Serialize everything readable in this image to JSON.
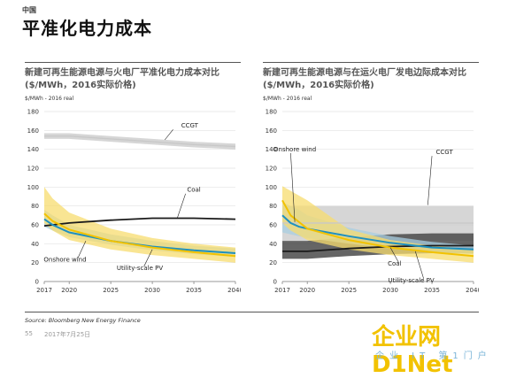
{
  "header": {
    "country": "中国",
    "title": "平准化电力成本"
  },
  "colors": {
    "ccgt": "#c8c8c8",
    "coal": "#1a1a1a",
    "coal_band": "#4a4a4a",
    "onshore_wind": "#1e90c0",
    "onshore_band": "#a8cde0",
    "utility_pv": "#f2c200",
    "pv_band": "#f7dc6f"
  },
  "chart_data": [
    {
      "type": "line",
      "title_line1": "新建可再生能源电源与火电厂平准化电力成本对比",
      "title_line2": "($/MWh，2016实际价格)",
      "unit": "$/MWh - 2016 real",
      "x_ticks": [
        "2017",
        "2020",
        "2025",
        "2030",
        "2035",
        "2040"
      ],
      "y_ticks": [
        "0",
        "20",
        "40",
        "60",
        "80",
        "100",
        "120",
        "140",
        "160",
        "180"
      ],
      "xlim": [
        2017,
        2040
      ],
      "ylim": [
        0,
        180
      ],
      "series": [
        {
          "name": "CCGT",
          "x": [
            2017,
            2020,
            2025,
            2030,
            2035,
            2040
          ],
          "y": [
            154,
            154,
            151,
            148,
            145,
            143
          ],
          "low": [
            151,
            151,
            148,
            145,
            142,
            140
          ],
          "high": [
            157,
            157,
            154,
            151,
            148,
            146
          ]
        },
        {
          "name": "Coal",
          "x": [
            2017,
            2020,
            2025,
            2030,
            2035,
            2040
          ],
          "y": [
            59,
            62,
            65,
            67,
            67,
            66
          ]
        },
        {
          "name": "Onshore wind",
          "x": [
            2017,
            2018,
            2020,
            2025,
            2030,
            2035,
            2040
          ],
          "y": [
            66,
            60,
            52,
            43,
            37,
            33,
            30
          ],
          "low": [
            58,
            54,
            47,
            39,
            33,
            29,
            26
          ],
          "high": [
            76,
            70,
            60,
            50,
            43,
            38,
            35
          ]
        },
        {
          "name": "Utility-scale PV",
          "x": [
            2017,
            2018,
            2020,
            2025,
            2030,
            2035,
            2040
          ],
          "y": [
            72,
            64,
            55,
            43,
            36,
            31,
            27
          ],
          "low": [
            62,
            54,
            44,
            34,
            28,
            24,
            20
          ],
          "high": [
            100,
            88,
            73,
            56,
            46,
            40,
            36
          ]
        }
      ]
    },
    {
      "type": "line",
      "title_line1": "新建可再生能源电源与在运火电厂发电边际成本对比",
      "title_line2": "($/MWh，2016实际价格)",
      "unit": "$/MWh - 2016 real",
      "x_ticks": [
        "2017",
        "2020",
        "2025",
        "2030",
        "2035",
        "2040"
      ],
      "y_ticks": [
        "0",
        "20",
        "40",
        "60",
        "80",
        "100",
        "120",
        "140",
        "160",
        "180"
      ],
      "xlim": [
        2017,
        2040
      ],
      "ylim": [
        0,
        180
      ],
      "series": [
        {
          "name": "CCGT",
          "x": [
            2017,
            2020,
            2025,
            2030,
            2035,
            2040
          ],
          "y": [
            62,
            62,
            62,
            62,
            62,
            62
          ],
          "low": [
            43,
            43,
            43,
            43,
            43,
            43
          ],
          "high": [
            80,
            80,
            80,
            80,
            80,
            80
          ]
        },
        {
          "name": "Coal",
          "x": [
            2017,
            2020,
            2025,
            2030,
            2035,
            2040
          ],
          "y": [
            32,
            32,
            35,
            37,
            38,
            38
          ],
          "low": [
            24,
            24,
            27,
            29,
            30,
            30
          ],
          "high": [
            43,
            43,
            47,
            50,
            51,
            51
          ]
        },
        {
          "name": "Onshore wind",
          "x": [
            2017,
            2018,
            2019,
            2020,
            2025,
            2030,
            2035,
            2040
          ],
          "y": [
            70,
            62,
            58,
            56,
            48,
            41,
            36,
            34
          ],
          "low": [
            52,
            50,
            48,
            46,
            40,
            35,
            31,
            29
          ],
          "high": [
            84,
            80,
            76,
            70,
            57,
            48,
            42,
            38
          ]
        },
        {
          "name": "Utility-scale PV",
          "x": [
            2017,
            2018,
            2020,
            2025,
            2030,
            2035,
            2040
          ],
          "y": [
            86,
            70,
            56,
            44,
            36,
            31,
            27
          ],
          "low": [
            62,
            54,
            44,
            34,
            28,
            24,
            20
          ],
          "high": [
            101,
            96,
            86,
            55,
            44,
            38,
            34
          ]
        }
      ]
    }
  ],
  "source": "Source: Bloomberg New Energy Finance",
  "footer": {
    "page": "55",
    "date": "2017年7月25日"
  },
  "watermark": {
    "brand": "企业网D1Net",
    "tagline": "企业 IT 第1门户"
  }
}
